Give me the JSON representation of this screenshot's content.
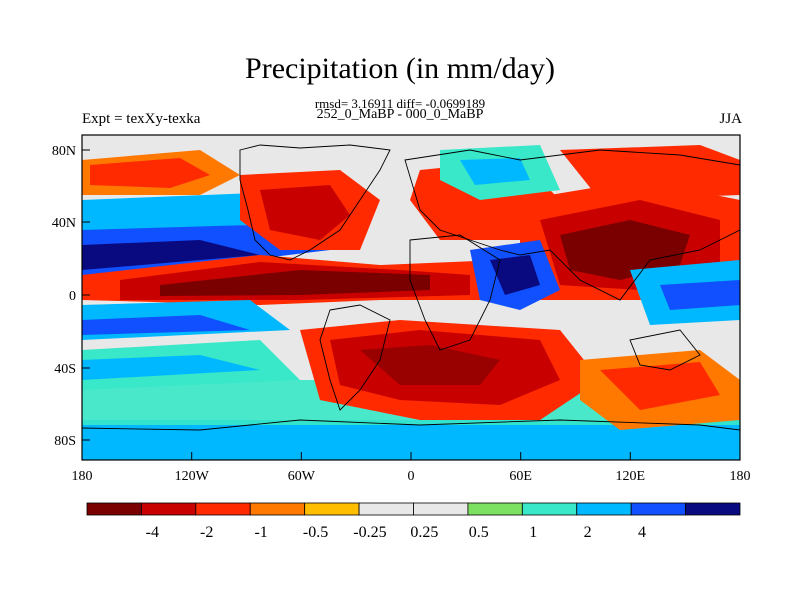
{
  "title": "Precipitation (in mm/day)",
  "stats_line": "rmsd= 3.16911 diff= -0.0699189",
  "subtitle": "252_0_MaBP - 000_0_MaBP",
  "left_label": "Expt = texXy-texka",
  "right_label": "JJA",
  "axes": {
    "lat_ticks": [
      "80N",
      "40N",
      "0",
      "40S",
      "80S"
    ],
    "lon_ticks": [
      "180",
      "120W",
      "60W",
      "0",
      "60E",
      "120E",
      "180"
    ]
  },
  "colorbar": {
    "colors": [
      "#7a0000",
      "#c80000",
      "#ff2a00",
      "#ff7800",
      "#ffbe00",
      "#e8e8e8",
      "#e8e8e8",
      "#7ce060",
      "#38e8c8",
      "#00b8ff",
      "#1050ff",
      "#0a0a80"
    ],
    "labels": [
      "-4",
      "-2",
      "-1",
      "-0.5",
      "-0.25",
      "0.25",
      "0.5",
      "1",
      "2",
      "4"
    ]
  }
}
